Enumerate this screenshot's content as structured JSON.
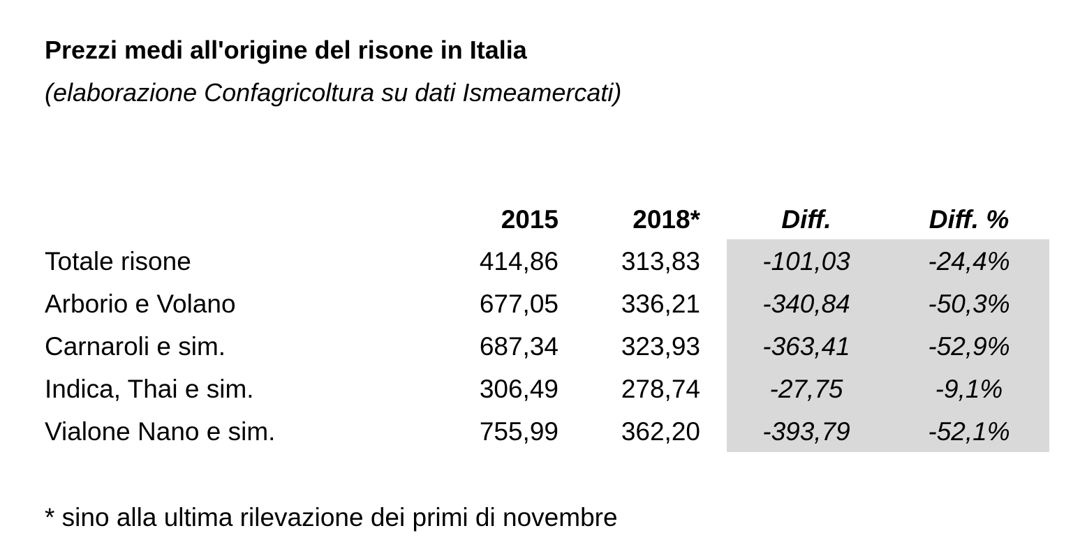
{
  "header": {
    "title": "Prezzi medi all'origine del risone in Italia",
    "subtitle": "(elaborazione Confagricoltura su dati Ismeamercati)"
  },
  "table": {
    "columns": [
      "2015",
      "2018*",
      "Diff.",
      "Diff. %"
    ],
    "rows": [
      [
        "Totale risone",
        "414,86",
        "313,83",
        "-101,03",
        "-24,4%"
      ],
      [
        "Arborio e Volano",
        "677,05",
        "336,21",
        "-340,84",
        "-50,3%"
      ],
      [
        "Carnaroli e sim.",
        "687,34",
        "323,93",
        "-363,41",
        "-52,9%"
      ],
      [
        "Indica, Thai e sim.",
        "306,49",
        "278,74",
        "-27,75",
        "-9,1%"
      ],
      [
        "Vialone Nano e sim.",
        "755,99",
        "362,20",
        "-393,79",
        "-52,1%"
      ]
    ]
  },
  "footnote": "* sino alla ultima rilevazione dei primi di novembre"
}
